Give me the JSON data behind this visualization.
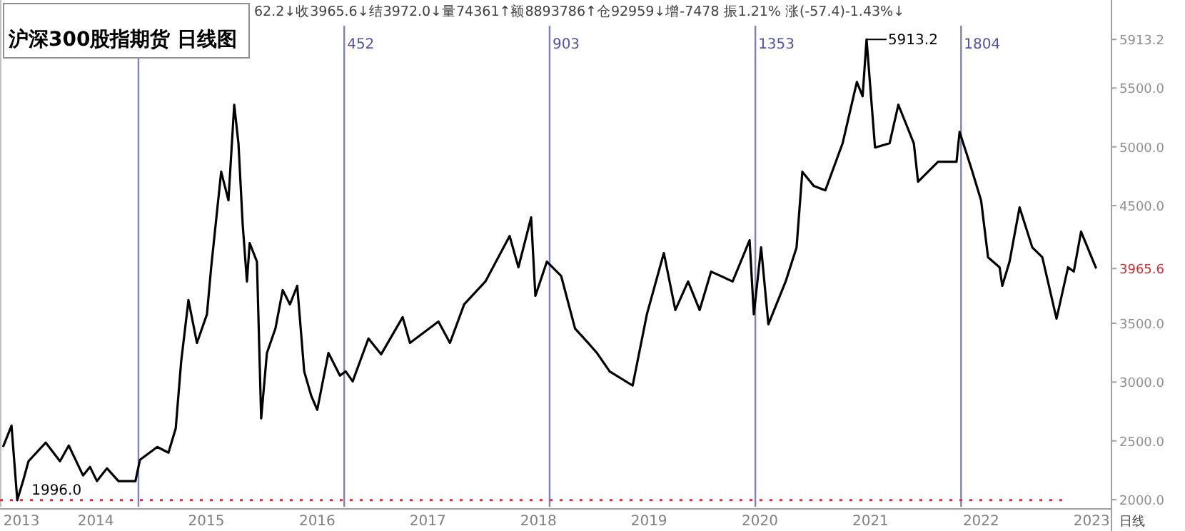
{
  "chart_data": {
    "type": "line",
    "title": "沪深300股指期货  日线图",
    "annotations": [
      "62.2↓收3965.6↓结3972.0↓量74361↑额8893786↑仓92959↓增-7478 振1.21% 涨(-57.4)-1.43%↓",
      "日线",
      {
        "text": "1996.0",
        "x": "2013-06-17",
        "y": 1996.0
      },
      {
        "text": "5913.2",
        "x": "2021-02-18",
        "y": 5913.2
      }
    ],
    "xlim": [
      "2013-04-21",
      "2023-05-05"
    ],
    "ylim": [
      1940,
      6030
    ],
    "xticks": [
      {
        "value": "2013-07-01",
        "label": "2013"
      },
      {
        "value": "2014-03-03",
        "label": "2014"
      },
      {
        "value": "2015-03-03",
        "label": "2015"
      },
      {
        "value": "2016-03-03",
        "label": "2016"
      },
      {
        "value": "2017-03-03",
        "label": "2017"
      },
      {
        "value": "2018-03-03",
        "label": "2018"
      },
      {
        "value": "2019-03-03",
        "label": "2019"
      },
      {
        "value": "2020-03-03",
        "label": "2020"
      },
      {
        "value": "2021-03-03",
        "label": "2021"
      },
      {
        "value": "2022-03-03",
        "label": "2022"
      },
      {
        "value": "2023-03-03",
        "label": "2023"
      }
    ],
    "yticks": [
      {
        "value": 2000,
        "label": "2000.0"
      },
      {
        "value": 2500,
        "label": "2500.0"
      },
      {
        "value": 3000,
        "label": "3000.0"
      },
      {
        "value": 3500,
        "label": "3500.0"
      },
      3965.6,
      {
        "value": 4500,
        "label": "4500.0"
      },
      {
        "value": 5000,
        "label": "5000.0"
      },
      {
        "value": 5500,
        "label": "5500.0"
      },
      5913.2
    ],
    "ref_lines": [
      {
        "axis": "x",
        "value": "2014-07-22",
        "label": null,
        "color": "#8080c0"
      },
      {
        "axis": "x",
        "value": "2016-05-31",
        "label": "452",
        "color": "#8080c0"
      },
      {
        "axis": "x",
        "value": "2018-04-09",
        "label": "903",
        "color": "#8080c0"
      },
      {
        "axis": "x",
        "value": "2020-02-17",
        "label": "1353",
        "color": "#8080c0"
      },
      {
        "axis": "x",
        "value": "2021-12-27",
        "label": "1804",
        "color": "#8080c0"
      },
      {
        "axis": "y",
        "value": 1996.0,
        "label": null,
        "color": "#e03030",
        "line_style": "dotted"
      }
    ],
    "series": [
      {
        "color": "#000000",
        "x": [
          "2013-05-01",
          "2013-05-29",
          "2013-06-17",
          "2013-07-06",
          "2013-07-24",
          "2013-09-19",
          "2013-11-05",
          "2013-12-04",
          "2014-01-20",
          "2014-02-12",
          "2014-03-07",
          "2014-04-09",
          "2014-05-17",
          "2014-07-12",
          "2014-07-27",
          "2014-09-22",
          "2014-10-29",
          "2014-11-22",
          "2014-12-10",
          "2015-01-03",
          "2015-01-31",
          "2015-03-05",
          "2015-03-19",
          "2015-04-21",
          "2015-05-15",
          "2015-06-03",
          "2015-06-17",
          "2015-07-01",
          "2015-07-15",
          "2015-07-24",
          "2015-08-17",
          "2015-08-31",
          "2015-09-19",
          "2015-10-17",
          "2015-11-10",
          "2015-12-04",
          "2015-12-28",
          "2016-01-20",
          "2016-02-12",
          "2016-03-03",
          "2016-04-09",
          "2016-05-17",
          "2016-06-05",
          "2016-06-28",
          "2016-08-19",
          "2016-09-30",
          "2016-12-10",
          "2017-01-03",
          "2017-04-07",
          "2017-05-15",
          "2017-07-01",
          "2017-09-09",
          "2017-11-28",
          "2017-12-27",
          "2018-02-07",
          "2018-02-21",
          "2018-03-31",
          "2018-05-17",
          "2018-07-02",
          "2018-08-14",
          "2018-09-12",
          "2018-10-24",
          "2019-01-08",
          "2019-02-24",
          "2019-04-21",
          "2019-05-29",
          "2019-07-10",
          "2019-08-17",
          "2019-09-24",
          "2019-12-04",
          "2020-01-29",
          "2020-02-12",
          "2020-03-07",
          "2020-03-31",
          "2020-05-27",
          "2020-07-02",
          "2020-07-21",
          "2020-08-28",
          "2020-10-05",
          "2020-12-01",
          "2021-01-17",
          "2021-02-05",
          "2021-02-18",
          "2021-03-18",
          "2021-05-05",
          "2021-06-03",
          "2021-07-24",
          "2021-08-07",
          "2021-10-12",
          "2021-12-12",
          "2021-12-22",
          "2022-01-29",
          "2022-03-03",
          "2022-03-26",
          "2022-05-03",
          "2022-05-12",
          "2022-06-05",
          "2022-07-08",
          "2022-08-19",
          "2022-09-21",
          "2022-11-07",
          "2022-12-15",
          "2023-01-03",
          "2023-01-27",
          "2023-03-18"
        ],
        "values": [
          2448,
          2630,
          1996.0,
          2158,
          2327,
          2485,
          2327,
          2460,
          2206,
          2279,
          2158,
          2267,
          2158,
          2158,
          2339,
          2448,
          2400,
          2606,
          3176,
          3697,
          3333,
          3576,
          3976,
          4788,
          4545,
          5358,
          5030,
          4339,
          3855,
          4182,
          4024,
          2691,
          3248,
          3455,
          3782,
          3661,
          3818,
          3091,
          2885,
          2764,
          3248,
          3055,
          3091,
          3006,
          3370,
          3236,
          3552,
          3333,
          3515,
          3333,
          3661,
          3855,
          4242,
          3976,
          4400,
          3733,
          4024,
          3903,
          3455,
          3333,
          3248,
          3091,
          2970,
          3576,
          4097,
          3612,
          3855,
          3612,
          3939,
          3855,
          4206,
          3576,
          4145,
          3491,
          3855,
          4145,
          4788,
          4667,
          4630,
          5030,
          5552,
          5430,
          5913.2,
          4994,
          5030,
          5358,
          5030,
          4703,
          4873,
          4873,
          5127,
          4824,
          4545,
          4061,
          3976,
          3818,
          4024,
          4485,
          4145,
          4061,
          3539,
          3976,
          3939,
          4279,
          3965.6
        ]
      }
    ]
  }
}
